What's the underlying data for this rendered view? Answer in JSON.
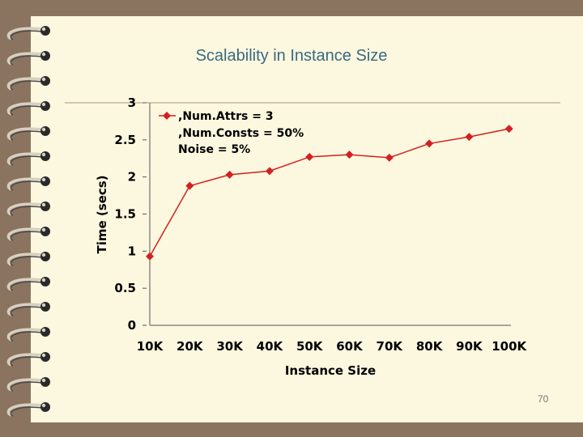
{
  "slide": {
    "title": "Scalability in Instance Size",
    "page_number": "70"
  },
  "chart_data": {
    "type": "line",
    "title": "Scalability in Instance Size",
    "xlabel": "Instance Size",
    "ylabel": "Time (secs)",
    "categories": [
      "10K",
      "20K",
      "30K",
      "40K",
      "50K",
      "60K",
      "70K",
      "80K",
      "90K",
      "100K"
    ],
    "yticks": [
      "0",
      "0.5",
      "1",
      "1.5",
      "2",
      "2.5",
      "3"
    ],
    "ylim": [
      0,
      3
    ],
    "grid": false,
    "legend_position": "top-left",
    "series": [
      {
        "name": ",Num.Attrs = 3",
        "values": [
          0.93,
          1.88,
          2.03,
          2.08,
          2.27,
          2.3,
          2.26,
          2.45,
          2.54,
          2.65
        ]
      }
    ],
    "legend_lines": [
      ",Num.Attrs = 3",
      ",Num.Consts = 50%",
      "Noise = 5%"
    ],
    "colors": {
      "series": "#d42020",
      "marker": "#d42020",
      "axis": "#555555",
      "title": "#3a6a82"
    }
  }
}
